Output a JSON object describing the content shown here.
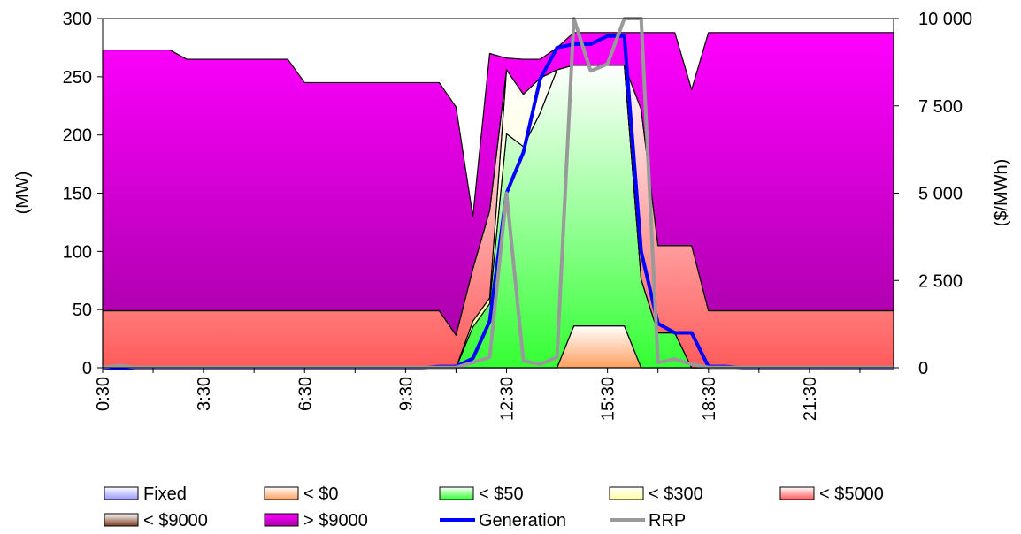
{
  "chart_data": {
    "type": "area",
    "x_ticks": [
      "0:30",
      "3:30",
      "6:30",
      "9:30",
      "12:30",
      "15:30",
      "18:30",
      "21:30"
    ],
    "ylabel_left": "(MW)",
    "ylabel_right": "($/MWh)",
    "ylim_left": [
      0,
      300
    ],
    "ylim_right": [
      0,
      10000
    ],
    "yticks_left": [
      "0",
      "50",
      "100",
      "150",
      "200",
      "250",
      "300"
    ],
    "yticks_right": [
      "0",
      "2 500",
      "5 000",
      "7 500",
      "10 000"
    ],
    "x_hours": [
      0.5,
      1,
      1.5,
      2,
      2.5,
      3,
      3.5,
      4,
      4.5,
      5,
      5.5,
      6,
      6.5,
      7,
      7.5,
      8,
      8.5,
      9,
      9.5,
      10,
      10.5,
      11,
      11.5,
      12,
      12.5,
      13,
      13.5,
      14,
      14.5,
      15,
      15.5,
      16,
      16.5,
      17,
      17.5,
      18,
      18.5,
      19,
      19.5,
      20,
      20.5,
      21,
      21.5,
      22,
      22.5,
      23,
      23.5,
      24
    ],
    "series": [
      {
        "name": "Fixed",
        "color": "#9999ff",
        "values": [
          0,
          0,
          0,
          0,
          0,
          0,
          0,
          0,
          0,
          0,
          0,
          0,
          0,
          0,
          0,
          0,
          0,
          0,
          0,
          0,
          0,
          0,
          0,
          0,
          0,
          0,
          0,
          0,
          0,
          0,
          0,
          0,
          0,
          0,
          0,
          0,
          0,
          0,
          0,
          0,
          0,
          0,
          0,
          0,
          0,
          0,
          0,
          0
        ]
      },
      {
        "name": "< $0",
        "color": "#ffa060",
        "values": [
          0,
          0,
          0,
          0,
          0,
          0,
          0,
          0,
          0,
          0,
          0,
          0,
          0,
          0,
          0,
          0,
          0,
          0,
          0,
          0,
          0,
          0,
          0,
          0,
          0,
          0,
          0,
          0,
          36,
          36,
          36,
          36,
          0,
          0,
          0,
          0,
          0,
          0,
          0,
          0,
          0,
          0,
          0,
          0,
          0,
          0,
          0,
          0
        ]
      },
      {
        "name": "< $50",
        "color": "#33ff33",
        "values": [
          0,
          0,
          0,
          0,
          0,
          0,
          0,
          0,
          0,
          0,
          0,
          0,
          0,
          0,
          0,
          0,
          0,
          0,
          0,
          0,
          0,
          0,
          35,
          55,
          201,
          190,
          219,
          256,
          224,
          224,
          224,
          224,
          76,
          30,
          30,
          0,
          0,
          0,
          0,
          0,
          0,
          0,
          0,
          0,
          0,
          0,
          0,
          0
        ]
      },
      {
        "name": "< $300",
        "color": "#ffffa0",
        "values": [
          0,
          0,
          0,
          0,
          0,
          0,
          0,
          0,
          0,
          0,
          0,
          0,
          0,
          0,
          0,
          0,
          0,
          0,
          0,
          0,
          0,
          0,
          5,
          5,
          55,
          45,
          30,
          0,
          0,
          0,
          0,
          0,
          0,
          0,
          0,
          0,
          0,
          0,
          0,
          0,
          0,
          0,
          0,
          0,
          0,
          0,
          0,
          0
        ]
      },
      {
        "name": "< $5000",
        "color": "#ff5a5a",
        "values": [
          49,
          49,
          49,
          49,
          49,
          49,
          49,
          49,
          49,
          49,
          49,
          49,
          49,
          49,
          49,
          49,
          49,
          49,
          49,
          49,
          49,
          28,
          45,
          75,
          0,
          0,
          0,
          0,
          0,
          0,
          0,
          0,
          146,
          75,
          75,
          105,
          49,
          49,
          49,
          49,
          49,
          49,
          49,
          49,
          49,
          49,
          49,
          49
        ]
      },
      {
        "name": "< $9000",
        "color": "#7a3c1e",
        "values": [
          0,
          0,
          0,
          0,
          0,
          0,
          0,
          0,
          0,
          0,
          0,
          0,
          0,
          0,
          0,
          0,
          0,
          0,
          0,
          0,
          0,
          0,
          0,
          0,
          0,
          0,
          0,
          0,
          0,
          0,
          0,
          0,
          0,
          0,
          0,
          0,
          0,
          0,
          0,
          0,
          0,
          0,
          0,
          0,
          0,
          0,
          0,
          0
        ]
      },
      {
        "name": "> $9000",
        "color": "#ff00ff",
        "values": [
          224,
          224,
          224,
          224,
          224,
          216,
          216,
          216,
          216,
          216,
          216,
          216,
          196,
          196,
          196,
          196,
          196,
          196,
          196,
          196,
          196,
          196,
          45,
          135,
          10,
          30,
          16,
          19,
          28,
          28,
          28,
          28,
          66,
          183,
          183,
          134,
          239,
          239,
          239,
          239,
          239,
          239,
          239,
          239,
          239,
          239,
          239,
          239
        ]
      },
      {
        "name": "Generation",
        "color": "#0000ff",
        "type": "line",
        "values": [
          0,
          0,
          0,
          0,
          0,
          0,
          0,
          0,
          0,
          0,
          0,
          0,
          0,
          0,
          0,
          0,
          0,
          0,
          0,
          0,
          1,
          1,
          8,
          40,
          150,
          185,
          248,
          275,
          278,
          278,
          285,
          285,
          100,
          38,
          30,
          30,
          1,
          1,
          0,
          0,
          0,
          0,
          0,
          0,
          0,
          0,
          0,
          0
        ]
      },
      {
        "name": "RRP",
        "color": "#999999",
        "type": "line",
        "axis": "right",
        "values": [
          10,
          60,
          10,
          10,
          10,
          10,
          10,
          10,
          10,
          10,
          10,
          10,
          10,
          10,
          10,
          10,
          10,
          10,
          10,
          10,
          10,
          10,
          150,
          300,
          5000,
          200,
          100,
          300,
          10000,
          8500,
          8700,
          10000,
          10000,
          150,
          250,
          100,
          10,
          10,
          10,
          10,
          10,
          10,
          10,
          10,
          10,
          10,
          10,
          10
        ]
      }
    ],
    "legend_position": "bottom",
    "grid": false
  }
}
